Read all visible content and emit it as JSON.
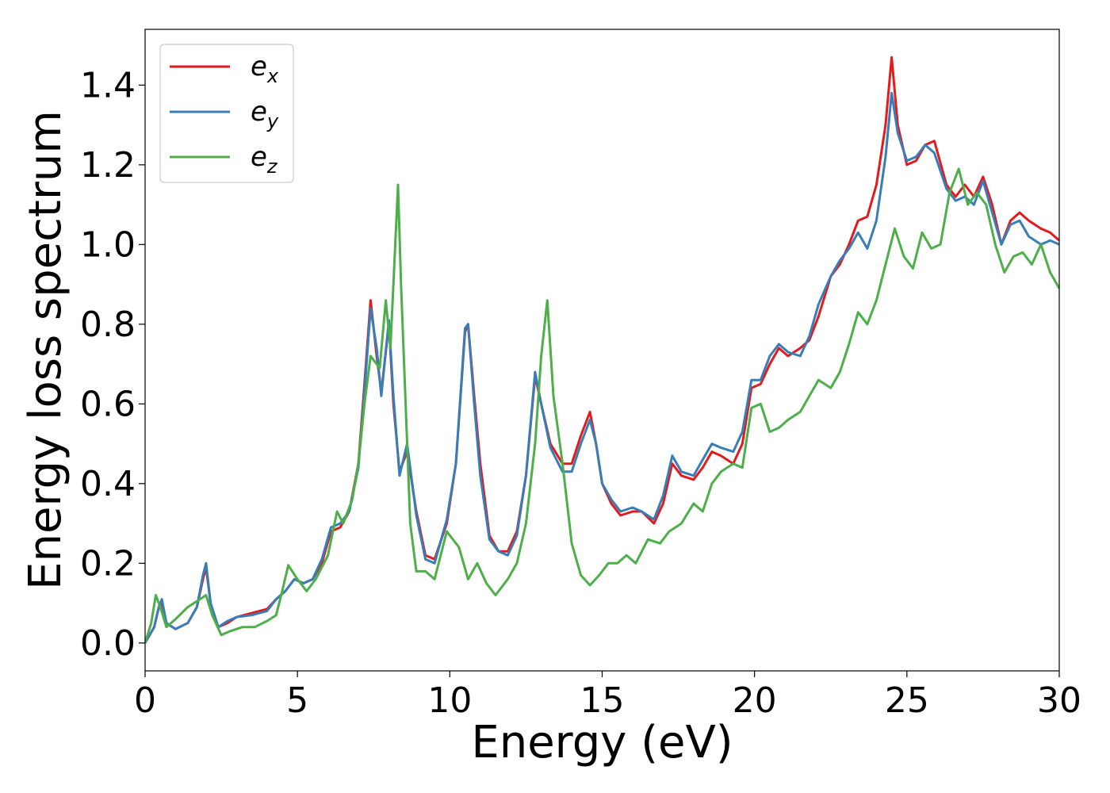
{
  "chart_data": {
    "type": "line",
    "xlabel": "Energy (eV)",
    "ylabel": "Energy loss spectrum",
    "xlim": [
      0,
      30
    ],
    "ylim": [
      -0.07,
      1.54
    ],
    "xticks": [
      0,
      5,
      10,
      15,
      20,
      25,
      30
    ],
    "xtick_labels": [
      "0",
      "5",
      "10",
      "15",
      "20",
      "25",
      "30"
    ],
    "yticks": [
      0.0,
      0.2,
      0.4,
      0.6,
      0.8,
      1.0,
      1.2,
      1.4
    ],
    "ytick_labels": [
      "0.0",
      "0.2",
      "0.4",
      "0.6",
      "0.8",
      "1.0",
      "1.2",
      "1.4"
    ],
    "grid": false,
    "legend_position": "top-left",
    "series": [
      {
        "name": "e",
        "subscript": "x",
        "color": "#e41a1c",
        "points": [
          [
            0,
            0.0
          ],
          [
            0.3,
            0.04
          ],
          [
            0.45,
            0.09
          ],
          [
            0.55,
            0.1
          ],
          [
            0.7,
            0.05
          ],
          [
            1.0,
            0.035
          ],
          [
            1.4,
            0.05
          ],
          [
            1.7,
            0.09
          ],
          [
            1.9,
            0.16
          ],
          [
            2.0,
            0.19
          ],
          [
            2.15,
            0.1
          ],
          [
            2.4,
            0.04
          ],
          [
            2.7,
            0.05
          ],
          [
            3.0,
            0.065
          ],
          [
            3.5,
            0.075
          ],
          [
            4.0,
            0.085
          ],
          [
            4.3,
            0.11
          ],
          [
            4.6,
            0.13
          ],
          [
            4.9,
            0.16
          ],
          [
            5.2,
            0.15
          ],
          [
            5.5,
            0.16
          ],
          [
            5.8,
            0.2
          ],
          [
            6.1,
            0.28
          ],
          [
            6.4,
            0.29
          ],
          [
            6.7,
            0.33
          ],
          [
            7.0,
            0.45
          ],
          [
            7.2,
            0.65
          ],
          [
            7.4,
            0.86
          ],
          [
            7.6,
            0.72
          ],
          [
            7.75,
            0.63
          ],
          [
            8.0,
            0.8
          ],
          [
            8.15,
            0.6
          ],
          [
            8.35,
            0.43
          ],
          [
            8.6,
            0.48
          ],
          [
            8.9,
            0.33
          ],
          [
            9.2,
            0.22
          ],
          [
            9.5,
            0.21
          ],
          [
            9.9,
            0.3
          ],
          [
            10.2,
            0.45
          ],
          [
            10.5,
            0.78
          ],
          [
            10.6,
            0.8
          ],
          [
            10.8,
            0.62
          ],
          [
            11.0,
            0.45
          ],
          [
            11.3,
            0.27
          ],
          [
            11.6,
            0.23
          ],
          [
            11.9,
            0.23
          ],
          [
            12.2,
            0.28
          ],
          [
            12.5,
            0.42
          ],
          [
            12.8,
            0.67
          ],
          [
            13.0,
            0.6
          ],
          [
            13.3,
            0.5
          ],
          [
            13.7,
            0.45
          ],
          [
            14.0,
            0.45
          ],
          [
            14.3,
            0.52
          ],
          [
            14.6,
            0.58
          ],
          [
            14.8,
            0.5
          ],
          [
            15.0,
            0.4
          ],
          [
            15.3,
            0.35
          ],
          [
            15.6,
            0.32
          ],
          [
            16.0,
            0.33
          ],
          [
            16.3,
            0.33
          ],
          [
            16.7,
            0.3
          ],
          [
            17.0,
            0.35
          ],
          [
            17.3,
            0.45
          ],
          [
            17.6,
            0.42
          ],
          [
            18.0,
            0.41
          ],
          [
            18.3,
            0.44
          ],
          [
            18.6,
            0.48
          ],
          [
            18.9,
            0.47
          ],
          [
            19.3,
            0.45
          ],
          [
            19.6,
            0.5
          ],
          [
            19.9,
            0.64
          ],
          [
            20.2,
            0.65
          ],
          [
            20.5,
            0.7
          ],
          [
            20.8,
            0.74
          ],
          [
            21.1,
            0.72
          ],
          [
            21.5,
            0.74
          ],
          [
            21.8,
            0.76
          ],
          [
            22.1,
            0.82
          ],
          [
            22.5,
            0.92
          ],
          [
            22.8,
            0.95
          ],
          [
            23.1,
            1.0
          ],
          [
            23.4,
            1.06
          ],
          [
            23.7,
            1.07
          ],
          [
            24.0,
            1.15
          ],
          [
            24.3,
            1.3
          ],
          [
            24.5,
            1.47
          ],
          [
            24.7,
            1.3
          ],
          [
            25.0,
            1.2
          ],
          [
            25.3,
            1.21
          ],
          [
            25.6,
            1.25
          ],
          [
            25.9,
            1.26
          ],
          [
            26.3,
            1.15
          ],
          [
            26.6,
            1.12
          ],
          [
            26.9,
            1.15
          ],
          [
            27.2,
            1.12
          ],
          [
            27.5,
            1.17
          ],
          [
            27.8,
            1.1
          ],
          [
            28.1,
            1.0
          ],
          [
            28.4,
            1.06
          ],
          [
            28.7,
            1.08
          ],
          [
            29.0,
            1.06
          ],
          [
            29.4,
            1.04
          ],
          [
            29.7,
            1.03
          ],
          [
            30,
            1.01
          ]
        ]
      },
      {
        "name": "e",
        "subscript": "y",
        "color": "#377eb8",
        "points": [
          [
            0,
            0.0
          ],
          [
            0.3,
            0.04
          ],
          [
            0.45,
            0.09
          ],
          [
            0.55,
            0.11
          ],
          [
            0.7,
            0.05
          ],
          [
            1.0,
            0.035
          ],
          [
            1.4,
            0.05
          ],
          [
            1.7,
            0.09
          ],
          [
            1.9,
            0.17
          ],
          [
            2.0,
            0.2
          ],
          [
            2.15,
            0.1
          ],
          [
            2.4,
            0.04
          ],
          [
            2.7,
            0.055
          ],
          [
            3.0,
            0.065
          ],
          [
            3.5,
            0.07
          ],
          [
            4.0,
            0.08
          ],
          [
            4.3,
            0.11
          ],
          [
            4.6,
            0.13
          ],
          [
            4.9,
            0.16
          ],
          [
            5.2,
            0.15
          ],
          [
            5.5,
            0.16
          ],
          [
            5.8,
            0.21
          ],
          [
            6.1,
            0.29
          ],
          [
            6.4,
            0.3
          ],
          [
            6.7,
            0.33
          ],
          [
            7.0,
            0.44
          ],
          [
            7.2,
            0.63
          ],
          [
            7.4,
            0.84
          ],
          [
            7.6,
            0.74
          ],
          [
            7.75,
            0.62
          ],
          [
            8.0,
            0.81
          ],
          [
            8.15,
            0.62
          ],
          [
            8.35,
            0.42
          ],
          [
            8.6,
            0.5
          ],
          [
            8.9,
            0.32
          ],
          [
            9.2,
            0.21
          ],
          [
            9.5,
            0.2
          ],
          [
            9.9,
            0.31
          ],
          [
            10.2,
            0.45
          ],
          [
            10.5,
            0.79
          ],
          [
            10.6,
            0.8
          ],
          [
            10.8,
            0.6
          ],
          [
            11.0,
            0.42
          ],
          [
            11.3,
            0.26
          ],
          [
            11.6,
            0.23
          ],
          [
            11.9,
            0.22
          ],
          [
            12.2,
            0.27
          ],
          [
            12.5,
            0.42
          ],
          [
            12.8,
            0.68
          ],
          [
            13.0,
            0.6
          ],
          [
            13.3,
            0.49
          ],
          [
            13.7,
            0.43
          ],
          [
            14.0,
            0.43
          ],
          [
            14.3,
            0.5
          ],
          [
            14.6,
            0.56
          ],
          [
            14.8,
            0.5
          ],
          [
            15.0,
            0.4
          ],
          [
            15.3,
            0.36
          ],
          [
            15.6,
            0.33
          ],
          [
            16.0,
            0.34
          ],
          [
            16.3,
            0.33
          ],
          [
            16.7,
            0.31
          ],
          [
            17.0,
            0.37
          ],
          [
            17.3,
            0.47
          ],
          [
            17.6,
            0.43
          ],
          [
            18.0,
            0.42
          ],
          [
            18.3,
            0.46
          ],
          [
            18.6,
            0.5
          ],
          [
            18.9,
            0.49
          ],
          [
            19.3,
            0.48
          ],
          [
            19.6,
            0.53
          ],
          [
            19.9,
            0.66
          ],
          [
            20.2,
            0.66
          ],
          [
            20.5,
            0.72
          ],
          [
            20.8,
            0.75
          ],
          [
            21.1,
            0.73
          ],
          [
            21.5,
            0.72
          ],
          [
            21.8,
            0.77
          ],
          [
            22.1,
            0.85
          ],
          [
            22.5,
            0.92
          ],
          [
            22.8,
            0.96
          ],
          [
            23.1,
            0.99
          ],
          [
            23.4,
            1.03
          ],
          [
            23.7,
            0.99
          ],
          [
            24.0,
            1.06
          ],
          [
            24.3,
            1.22
          ],
          [
            24.5,
            1.38
          ],
          [
            24.7,
            1.28
          ],
          [
            25.0,
            1.21
          ],
          [
            25.3,
            1.22
          ],
          [
            25.6,
            1.25
          ],
          [
            25.9,
            1.23
          ],
          [
            26.3,
            1.14
          ],
          [
            26.6,
            1.11
          ],
          [
            26.9,
            1.12
          ],
          [
            27.2,
            1.1
          ],
          [
            27.5,
            1.16
          ],
          [
            27.8,
            1.08
          ],
          [
            28.1,
            1.0
          ],
          [
            28.4,
            1.05
          ],
          [
            28.7,
            1.06
          ],
          [
            29.0,
            1.02
          ],
          [
            29.4,
            1.0
          ],
          [
            29.7,
            1.01
          ],
          [
            30,
            1.0
          ]
        ]
      },
      {
        "name": "e",
        "subscript": "z",
        "color": "#4daf4a",
        "points": [
          [
            0,
            0.0
          ],
          [
            0.2,
            0.05
          ],
          [
            0.35,
            0.12
          ],
          [
            0.5,
            0.09
          ],
          [
            0.7,
            0.04
          ],
          [
            1.0,
            0.06
          ],
          [
            1.4,
            0.09
          ],
          [
            1.8,
            0.11
          ],
          [
            2.0,
            0.12
          ],
          [
            2.2,
            0.07
          ],
          [
            2.5,
            0.02
          ],
          [
            2.8,
            0.03
          ],
          [
            3.2,
            0.04
          ],
          [
            3.6,
            0.04
          ],
          [
            4.0,
            0.055
          ],
          [
            4.3,
            0.07
          ],
          [
            4.5,
            0.13
          ],
          [
            4.7,
            0.195
          ],
          [
            5.0,
            0.16
          ],
          [
            5.3,
            0.13
          ],
          [
            5.6,
            0.16
          ],
          [
            6.0,
            0.22
          ],
          [
            6.3,
            0.33
          ],
          [
            6.5,
            0.3
          ],
          [
            6.8,
            0.36
          ],
          [
            7.0,
            0.45
          ],
          [
            7.2,
            0.6
          ],
          [
            7.4,
            0.72
          ],
          [
            7.7,
            0.69
          ],
          [
            7.9,
            0.86
          ],
          [
            8.05,
            0.74
          ],
          [
            8.15,
            0.9
          ],
          [
            8.3,
            1.15
          ],
          [
            8.4,
            0.9
          ],
          [
            8.55,
            0.6
          ],
          [
            8.7,
            0.3
          ],
          [
            8.9,
            0.18
          ],
          [
            9.2,
            0.18
          ],
          [
            9.5,
            0.16
          ],
          [
            9.9,
            0.28
          ],
          [
            10.3,
            0.24
          ],
          [
            10.6,
            0.16
          ],
          [
            10.9,
            0.2
          ],
          [
            11.2,
            0.15
          ],
          [
            11.5,
            0.12
          ],
          [
            11.9,
            0.16
          ],
          [
            12.2,
            0.2
          ],
          [
            12.5,
            0.3
          ],
          [
            12.8,
            0.5
          ],
          [
            13.0,
            0.72
          ],
          [
            13.2,
            0.86
          ],
          [
            13.4,
            0.62
          ],
          [
            13.7,
            0.45
          ],
          [
            14.0,
            0.25
          ],
          [
            14.3,
            0.17
          ],
          [
            14.6,
            0.145
          ],
          [
            14.9,
            0.17
          ],
          [
            15.2,
            0.2
          ],
          [
            15.5,
            0.2
          ],
          [
            15.8,
            0.22
          ],
          [
            16.1,
            0.2
          ],
          [
            16.5,
            0.26
          ],
          [
            16.9,
            0.25
          ],
          [
            17.2,
            0.28
          ],
          [
            17.6,
            0.3
          ],
          [
            18.0,
            0.35
          ],
          [
            18.3,
            0.33
          ],
          [
            18.6,
            0.4
          ],
          [
            18.9,
            0.43
          ],
          [
            19.3,
            0.45
          ],
          [
            19.6,
            0.44
          ],
          [
            19.9,
            0.59
          ],
          [
            20.2,
            0.6
          ],
          [
            20.5,
            0.53
          ],
          [
            20.8,
            0.54
          ],
          [
            21.1,
            0.56
          ],
          [
            21.5,
            0.58
          ],
          [
            21.8,
            0.62
          ],
          [
            22.1,
            0.66
          ],
          [
            22.5,
            0.64
          ],
          [
            22.8,
            0.68
          ],
          [
            23.1,
            0.75
          ],
          [
            23.4,
            0.83
          ],
          [
            23.7,
            0.8
          ],
          [
            24.0,
            0.86
          ],
          [
            24.3,
            0.95
          ],
          [
            24.6,
            1.04
          ],
          [
            24.9,
            0.97
          ],
          [
            25.2,
            0.94
          ],
          [
            25.5,
            1.03
          ],
          [
            25.8,
            0.99
          ],
          [
            26.1,
            1.0
          ],
          [
            26.4,
            1.13
          ],
          [
            26.7,
            1.19
          ],
          [
            27.0,
            1.1
          ],
          [
            27.3,
            1.13
          ],
          [
            27.6,
            1.1
          ],
          [
            27.9,
            1.0
          ],
          [
            28.2,
            0.93
          ],
          [
            28.5,
            0.97
          ],
          [
            28.8,
            0.98
          ],
          [
            29.1,
            0.95
          ],
          [
            29.4,
            1.0
          ],
          [
            29.7,
            0.93
          ],
          [
            30,
            0.89
          ]
        ]
      }
    ]
  }
}
